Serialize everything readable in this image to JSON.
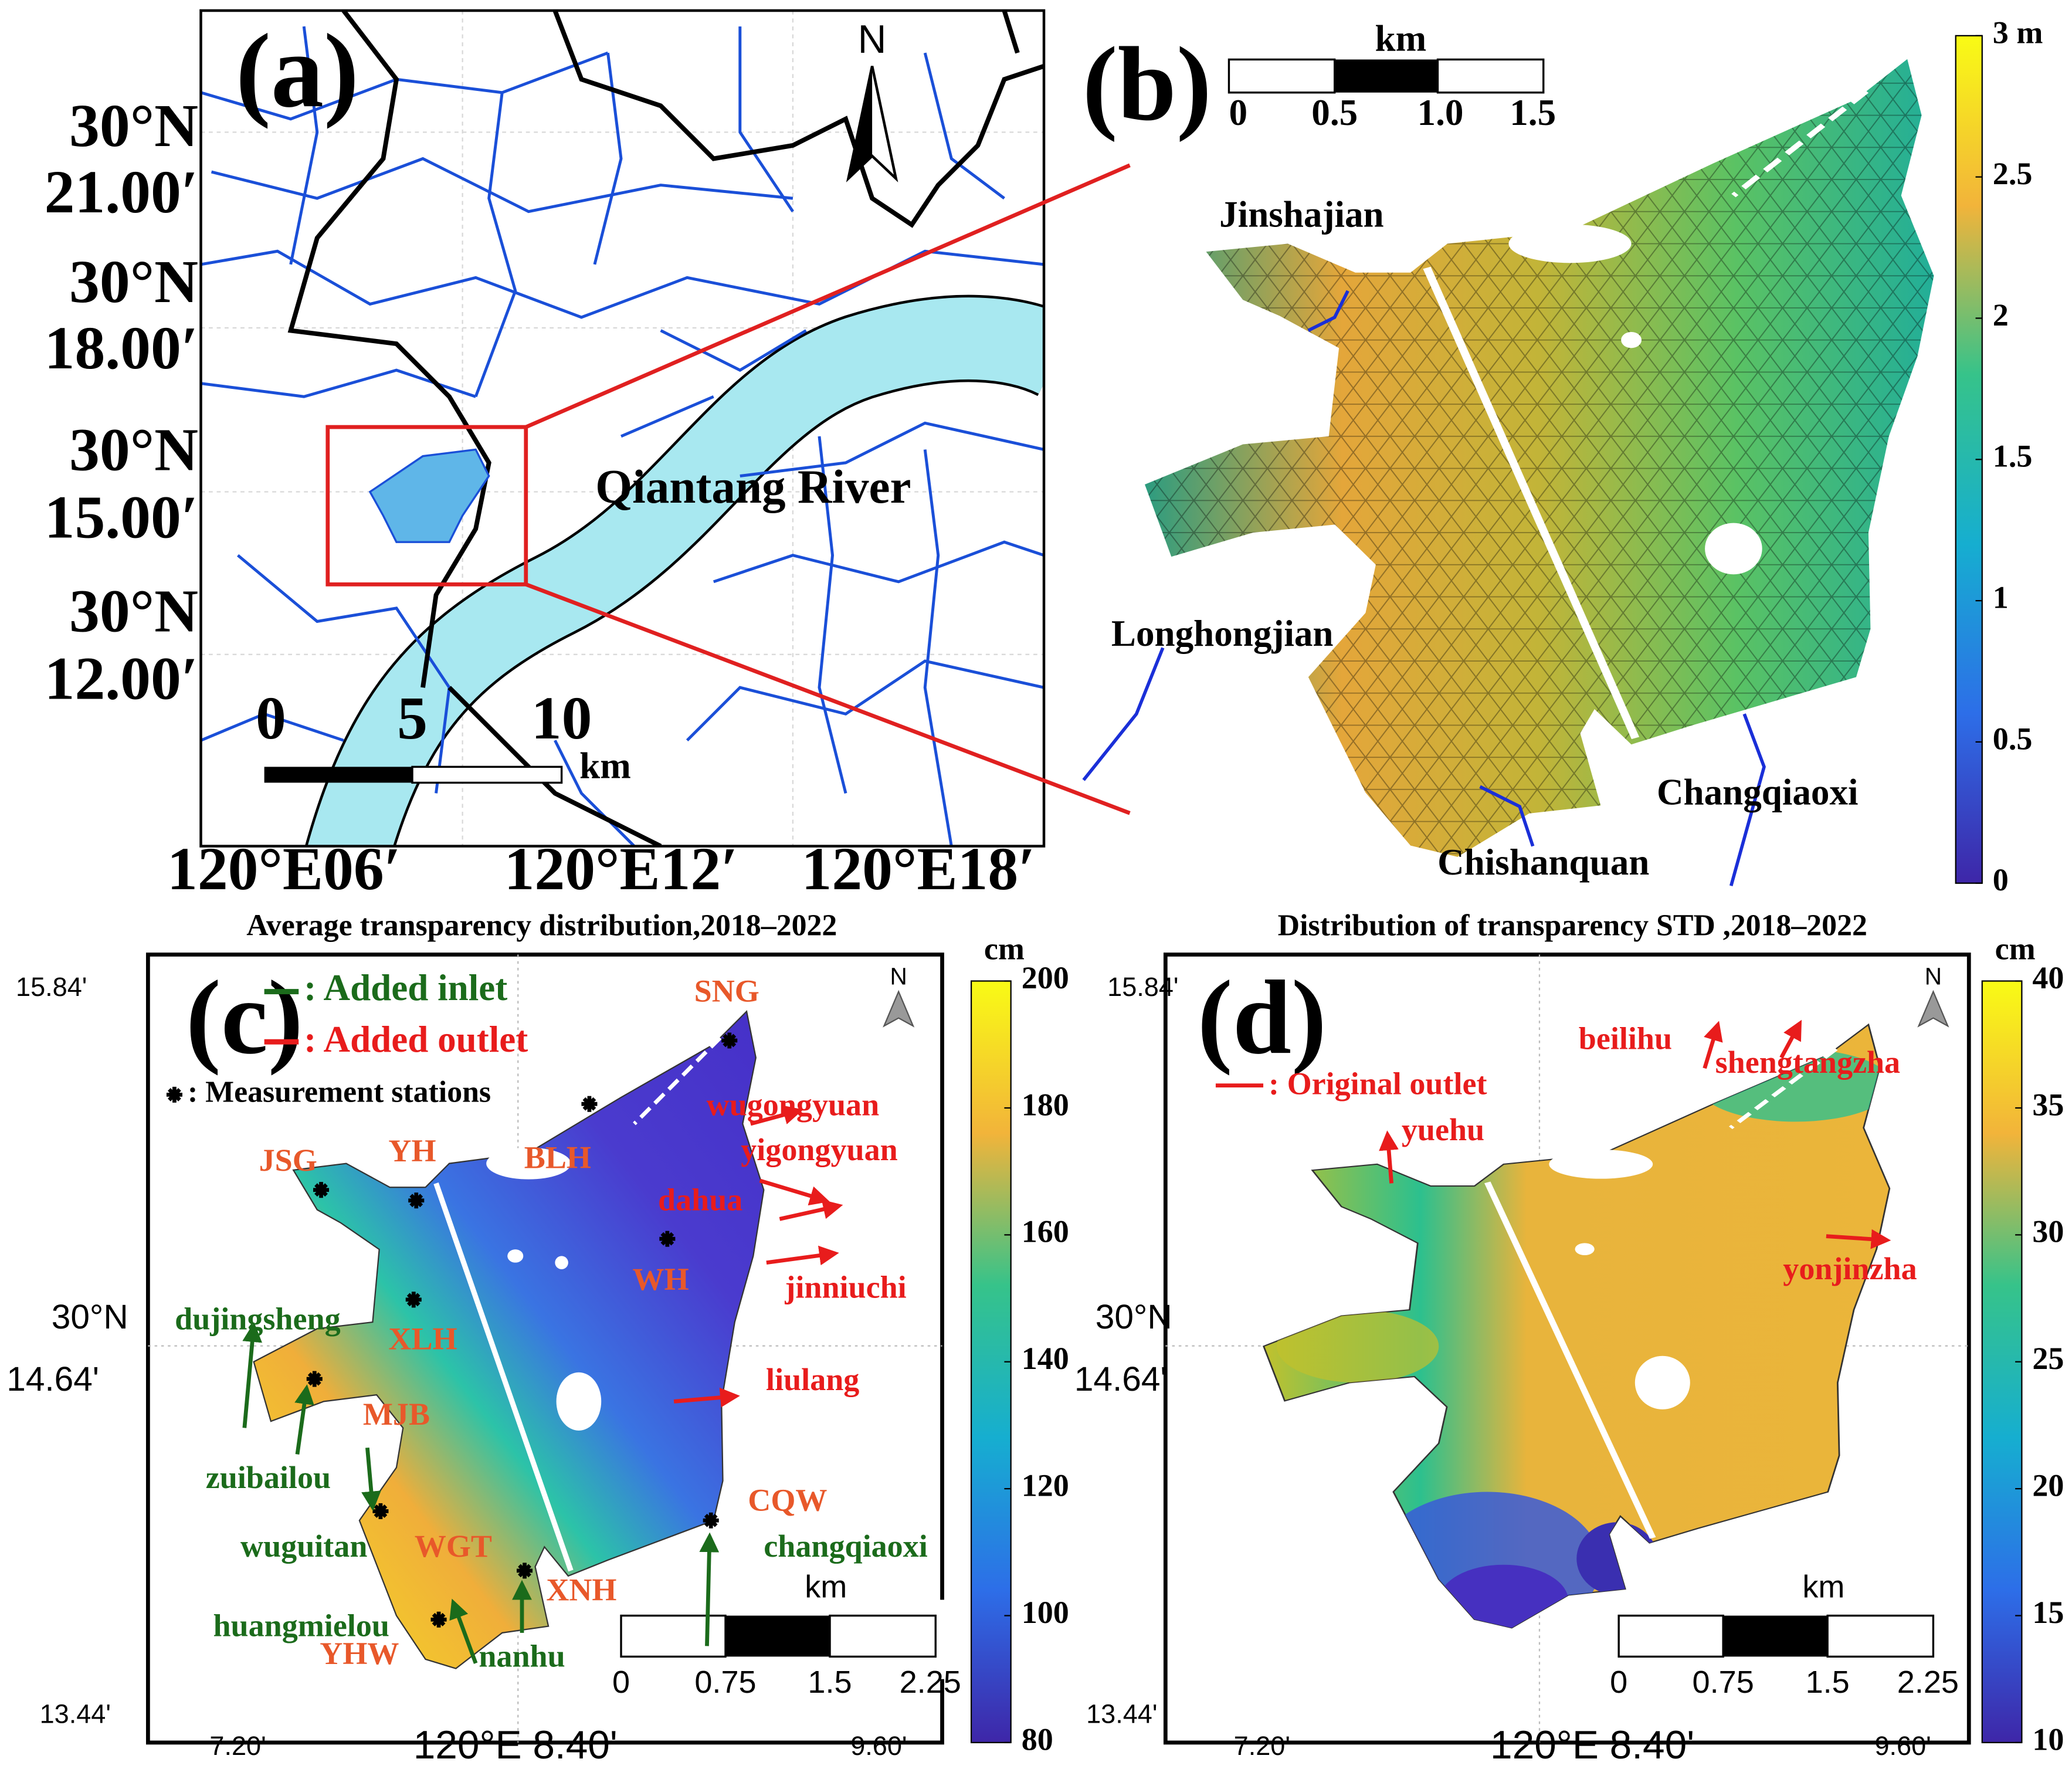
{
  "a": {
    "label": "(a)",
    "north": "N",
    "lat_labels": [
      {
        "deg": "30°N",
        "min": "21.00′"
      },
      {
        "deg": "30°N",
        "min": "18.00′"
      },
      {
        "deg": "30°N",
        "min": "15.00′"
      },
      {
        "deg": "30°N",
        "min": "12.00′"
      }
    ],
    "lon_labels": [
      "120°E06′",
      "120°E12′",
      "120°E18′"
    ],
    "river": "Qiantang River",
    "scale_bar": {
      "ticks": [
        "0",
        "5",
        "10"
      ],
      "unit": "km"
    }
  },
  "b": {
    "label": "(b)",
    "scale_bar": {
      "unit": "km",
      "ticks": [
        "0",
        "0.5",
        "1.0",
        "1.5"
      ]
    },
    "places": [
      "Jinshajian",
      "Longhongjian",
      "Chishanquan",
      "Changqiaoxi"
    ],
    "colorbar": {
      "lim": [
        0,
        3
      ],
      "ticks": [
        0,
        0.5,
        1,
        1.5,
        2,
        2.5,
        {
          "value": 3,
          "label": "3 m"
        }
      ]
    }
  },
  "c": {
    "title": "Average transparency distribution,2018–2022",
    "label": "(c)",
    "legend": {
      "inlet": ": Added inlet",
      "outlet": ": Added outlet",
      "stations": ": Measurement stations"
    },
    "stations": [
      "SNG",
      "BLH",
      "JSG",
      "YH",
      "WH",
      "XLH",
      "MJB",
      "WGT",
      "YHW",
      "XNH",
      "CQW"
    ],
    "inlets": [
      "dujingsheng",
      "zuibailou",
      "wuguitan",
      "huangmielou",
      "nanhu",
      "changqiaoxi"
    ],
    "outlets": [
      "wugongyuan",
      "yigongyuan",
      "dahua",
      "jinniuchi",
      "liulang"
    ],
    "lat_labels": [
      "15.84'",
      "30°N",
      "14.64'",
      "13.44'"
    ],
    "lon_labels": [
      "7.20'",
      "120°E 8.40'",
      "9.60'"
    ],
    "north": "N",
    "scale_bar": {
      "unit": "km",
      "ticks": [
        "0",
        "0.75",
        "1.5",
        "2.25"
      ]
    },
    "colorbar": {
      "unit": "cm",
      "lim": [
        80,
        200
      ],
      "ticks": [
        80,
        100,
        120,
        140,
        160,
        180,
        200
      ]
    }
  },
  "d": {
    "title": "Distribution of transparency STD ,2018–2022",
    "label": "(d)",
    "legend": {
      "outlet": ": Original outlet"
    },
    "outlets": [
      "beilihu",
      "shengtangzha",
      "yuehu",
      "yonjinzha"
    ],
    "lat_labels": [
      "15.84'",
      "30°N",
      "14.64'",
      "13.44'"
    ],
    "lon_labels": [
      "7.20'",
      "120°E 8.40'",
      "9.60'"
    ],
    "north": "N",
    "scale_bar": {
      "unit": "km",
      "ticks": [
        "0",
        "0.75",
        "1.5",
        "2.25"
      ]
    },
    "colorbar": {
      "unit": "cm",
      "lim": [
        10,
        40
      ],
      "ticks": [
        10,
        15,
        20,
        25,
        30,
        35,
        40
      ]
    }
  }
}
